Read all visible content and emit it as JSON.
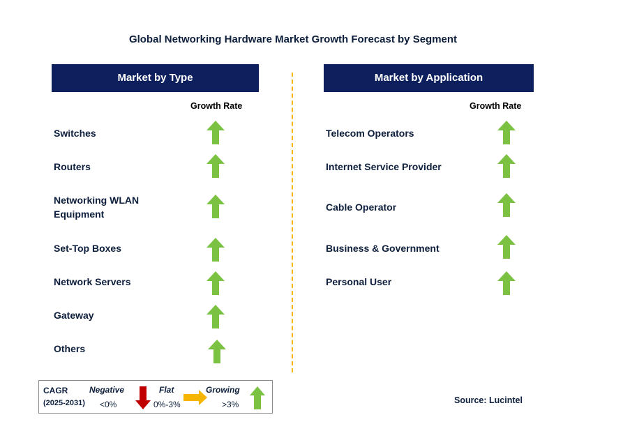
{
  "title": "Global Networking Hardware Market Growth Forecast by Segment",
  "left_panel": {
    "header": "Market by Type",
    "column_header": "Growth Rate",
    "items": [
      {
        "label": "Switches",
        "growth": "Growing"
      },
      {
        "label": "Routers",
        "growth": "Growing"
      },
      {
        "label": "Networking WLAN Equipment",
        "growth": "Growing"
      },
      {
        "label": "Set-Top Boxes",
        "growth": "Growing"
      },
      {
        "label": "Network Servers",
        "growth": "Growing"
      },
      {
        "label": "Gateway",
        "growth": "Growing"
      },
      {
        "label": "Others",
        "growth": "Growing"
      }
    ]
  },
  "right_panel": {
    "header": "Market by Application",
    "column_header": "Growth Rate",
    "items": [
      {
        "label": "Telecom Operators",
        "growth": "Growing"
      },
      {
        "label": "Internet Service Provider",
        "growth": "Growing"
      },
      {
        "label": "Cable Operator",
        "growth": "Growing"
      },
      {
        "label": "Business & Government",
        "growth": "Growing"
      },
      {
        "label": "Personal User",
        "growth": "Growing"
      }
    ]
  },
  "legend": {
    "cagr_label": "CAGR",
    "period": "(2025-2031)",
    "negative_label": "Negative",
    "negative_range": "<0%",
    "flat_label": "Flat",
    "flat_range": "0%-3%",
    "growing_label": "Growing",
    "growing_range": ">3%"
  },
  "source": "Source: Lucintel",
  "colors": {
    "header_bg": "#0d1f5c",
    "growing": "#7cc242",
    "negative": "#c00000",
    "flat": "#f5b400",
    "divider": "#f5b400"
  }
}
